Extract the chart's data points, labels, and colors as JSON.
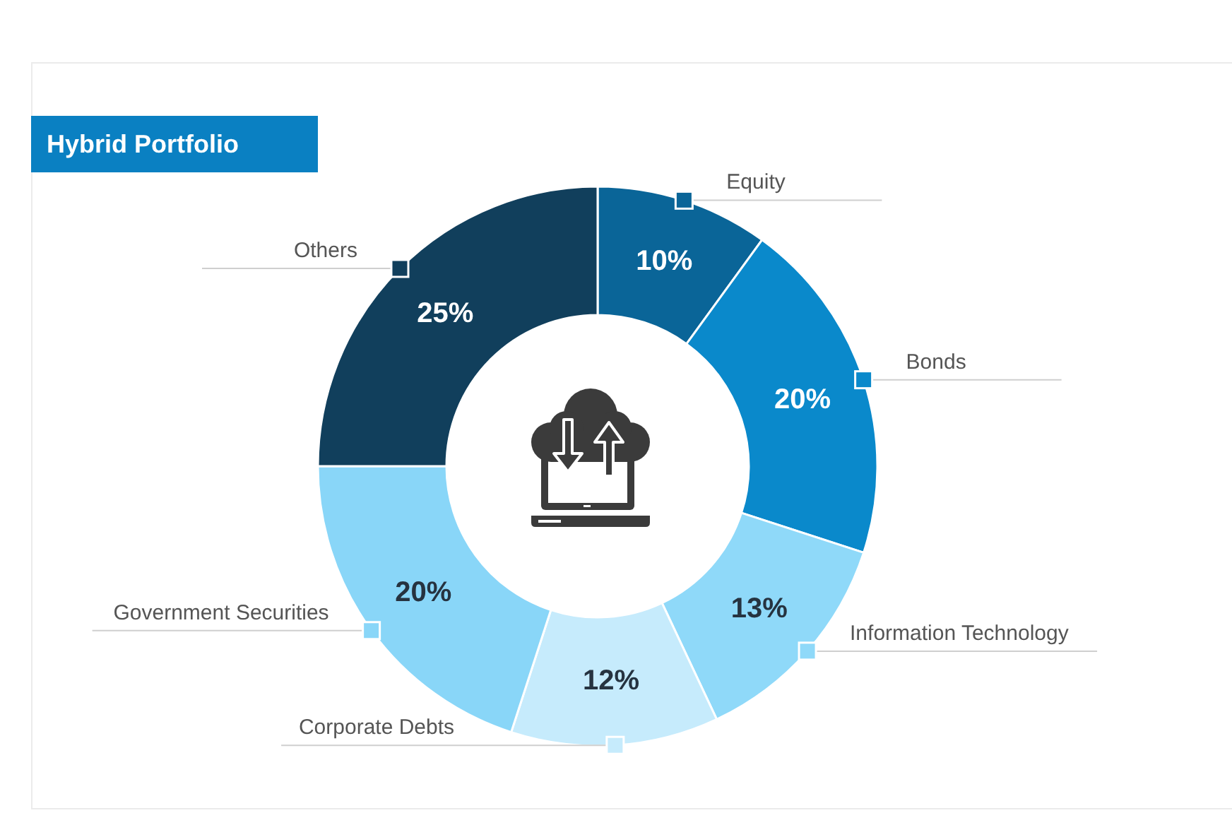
{
  "chart_data": {
    "type": "donut",
    "title": "Hybrid Portfolio",
    "categories": [
      "Equity",
      "Bonds",
      "Information Technology",
      "Corporate Debts",
      "Government Securities",
      "Others"
    ],
    "values": [
      10,
      20,
      13,
      12,
      20,
      25
    ],
    "colors": [
      "#0a6598",
      "#0a89cb",
      "#8fd9f9",
      "#c6ebfc",
      "#89d6f8",
      "#113f5c"
    ],
    "value_labels": [
      "10%",
      "20%",
      "13%",
      "12%",
      "20%",
      "25%"
    ]
  }
}
